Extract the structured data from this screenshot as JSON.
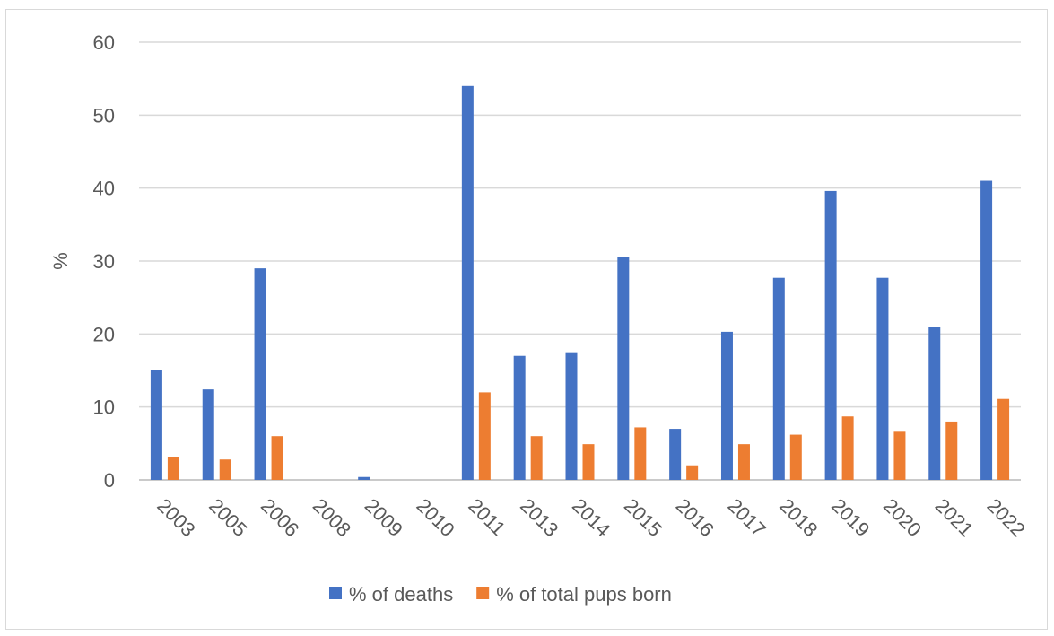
{
  "chart_data": {
    "type": "bar",
    "ylabel": "%",
    "xlabel": "",
    "ylim": [
      0,
      60
    ],
    "yticks": [
      0,
      10,
      20,
      30,
      40,
      50,
      60
    ],
    "grid": true,
    "legend_position": "bottom",
    "categories": [
      "2003",
      "2005",
      "2006",
      "2008",
      "2009",
      "2010",
      "2011",
      "2013",
      "2014",
      "2015",
      "2016",
      "2017",
      "2018",
      "2019",
      "2020",
      "2021",
      "2022"
    ],
    "series": [
      {
        "name": "% of deaths",
        "color": "#4472C4",
        "values": [
          15.1,
          12.4,
          29.0,
          0,
          0.4,
          0,
          54.0,
          17.0,
          17.5,
          30.6,
          7.0,
          20.3,
          27.7,
          39.6,
          27.7,
          21.0,
          41.0
        ]
      },
      {
        "name": "% of total pups born",
        "color": "#ED7D31",
        "values": [
          3.1,
          2.8,
          6.0,
          0,
          0,
          0,
          12.0,
          6.0,
          4.9,
          7.2,
          2.0,
          4.9,
          6.2,
          8.7,
          6.6,
          8.0,
          11.1
        ]
      }
    ]
  }
}
